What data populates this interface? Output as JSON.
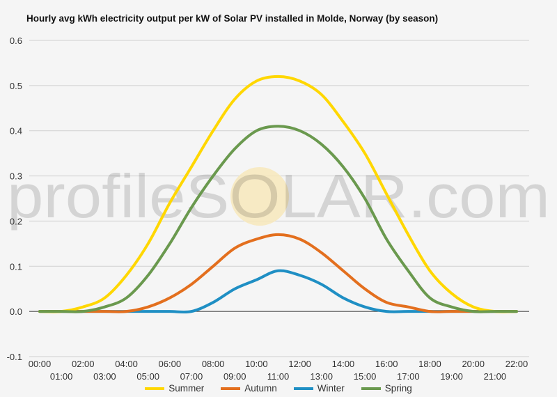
{
  "chart_data": {
    "type": "line",
    "title": "Hourly avg kWh electricity output per kW of Solar PV installed in Molde, Norway (by season)",
    "xlabel": "",
    "ylabel": "",
    "ylim": [
      -0.1,
      0.6
    ],
    "yticks": [
      "0.6",
      "0.5",
      "0.4",
      "0.3",
      "0.2",
      "0.1",
      "0.0",
      "-0.1"
    ],
    "ytick_values": [
      0.6,
      0.5,
      0.4,
      0.3,
      0.2,
      0.1,
      0.0,
      -0.1
    ],
    "x": [
      "00:00",
      "01:00",
      "02:00",
      "03:00",
      "04:00",
      "05:00",
      "06:00",
      "07:00",
      "08:00",
      "09:00",
      "10:00",
      "11:00",
      "12:00",
      "13:00",
      "14:00",
      "15:00",
      "16:00",
      "17:00",
      "18:00",
      "19:00",
      "20:00",
      "21:00",
      "22:00"
    ],
    "grid": "horizontal",
    "legend_position": "bottom",
    "watermark": "profileSOLAR.com",
    "series": [
      {
        "name": "Summer",
        "color": "#FFD700",
        "values": [
          0,
          0,
          0.01,
          0.03,
          0.08,
          0.15,
          0.24,
          0.32,
          0.4,
          0.47,
          0.51,
          0.52,
          0.51,
          0.48,
          0.42,
          0.35,
          0.26,
          0.17,
          0.09,
          0.04,
          0.01,
          0,
          0
        ]
      },
      {
        "name": "Autumn",
        "color": "#E36F1E",
        "values": [
          0,
          0,
          0,
          0,
          0,
          0.01,
          0.03,
          0.06,
          0.1,
          0.14,
          0.16,
          0.17,
          0.16,
          0.13,
          0.09,
          0.05,
          0.02,
          0.01,
          0,
          0,
          0,
          0,
          0
        ]
      },
      {
        "name": "Winter",
        "color": "#1F8FC4",
        "values": [
          0,
          0,
          0,
          0,
          0,
          0,
          0,
          0,
          0.02,
          0.05,
          0.07,
          0.09,
          0.08,
          0.06,
          0.03,
          0.01,
          0,
          0,
          0,
          0,
          0,
          0,
          0
        ]
      },
      {
        "name": "Spring",
        "color": "#6A994E",
        "values": [
          0,
          0,
          0,
          0.01,
          0.03,
          0.08,
          0.15,
          0.23,
          0.3,
          0.36,
          0.4,
          0.41,
          0.4,
          0.37,
          0.32,
          0.25,
          0.16,
          0.09,
          0.03,
          0.01,
          0,
          0,
          0
        ]
      }
    ]
  }
}
